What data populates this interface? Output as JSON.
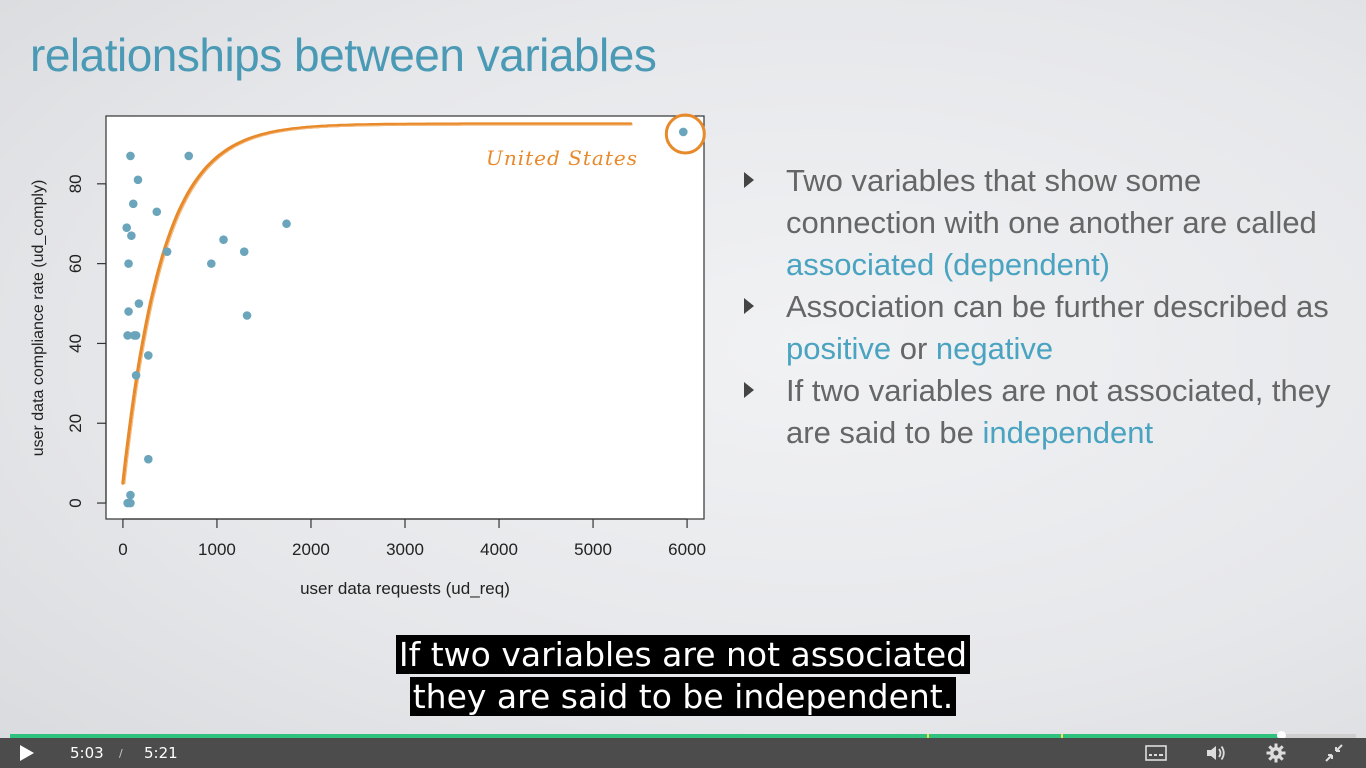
{
  "slide": {
    "title": "relationships between variables",
    "bullets": [
      {
        "parts": [
          {
            "text": "Two variables that show some connection with one another are called ",
            "hl": false
          },
          {
            "text": "associated (dependent)",
            "hl": true
          }
        ]
      },
      {
        "parts": [
          {
            "text": "Association can be further described as ",
            "hl": false
          },
          {
            "text": "positive",
            "hl": true
          },
          {
            "text": " or ",
            "hl": false
          },
          {
            "text": "negative",
            "hl": true
          }
        ]
      },
      {
        "parts": [
          {
            "text": "If two variables are not associated, they are said to be ",
            "hl": false
          },
          {
            "text": "independent",
            "hl": true
          }
        ]
      }
    ]
  },
  "chart_data": {
    "type": "scatter",
    "xlabel": "user data requests (ud_req)",
    "ylabel": "user data compliance rate (ud_comply)",
    "xlim": [
      -180,
      6180
    ],
    "ylim": [
      -4,
      97
    ],
    "xticks": [
      0,
      1000,
      2000,
      3000,
      4000,
      5000,
      6000
    ],
    "yticks": [
      0,
      20,
      40,
      60,
      80
    ],
    "annotation": "United States",
    "point_color": "#6aa5bb",
    "curve_color": "#e8892a",
    "points": [
      {
        "x": 80,
        "y": 87
      },
      {
        "x": 700,
        "y": 87
      },
      {
        "x": 160,
        "y": 81
      },
      {
        "x": 110,
        "y": 75
      },
      {
        "x": 360,
        "y": 73
      },
      {
        "x": 1740,
        "y": 70
      },
      {
        "x": 40,
        "y": 69
      },
      {
        "x": 90,
        "y": 67
      },
      {
        "x": 1070,
        "y": 66
      },
      {
        "x": 470,
        "y": 63
      },
      {
        "x": 1290,
        "y": 63
      },
      {
        "x": 60,
        "y": 60
      },
      {
        "x": 940,
        "y": 60
      },
      {
        "x": 170,
        "y": 50
      },
      {
        "x": 60,
        "y": 48
      },
      {
        "x": 1320,
        "y": 47
      },
      {
        "x": 50,
        "y": 42
      },
      {
        "x": 120,
        "y": 42
      },
      {
        "x": 140,
        "y": 42
      },
      {
        "x": 270,
        "y": 37
      },
      {
        "x": 140,
        "y": 32
      },
      {
        "x": 270,
        "y": 11
      },
      {
        "x": 80,
        "y": 2
      },
      {
        "x": 50,
        "y": 0
      },
      {
        "x": 80,
        "y": 0
      },
      {
        "x": 5960,
        "y": 93
      }
    ]
  },
  "captions": {
    "line1": "If two variables are not associated",
    "line2": "they are said to be independent."
  },
  "player": {
    "current_time": "5:03",
    "separator": "/",
    "duration": "5:21",
    "progress_fraction": 0.944,
    "chapter_markers": [
      0.681,
      0.781
    ],
    "icons": {
      "play": "play-icon",
      "captions": "captions-icon",
      "volume": "volume-icon",
      "settings": "gear-icon",
      "exit_fullscreen": "exit-fullscreen-icon"
    }
  }
}
